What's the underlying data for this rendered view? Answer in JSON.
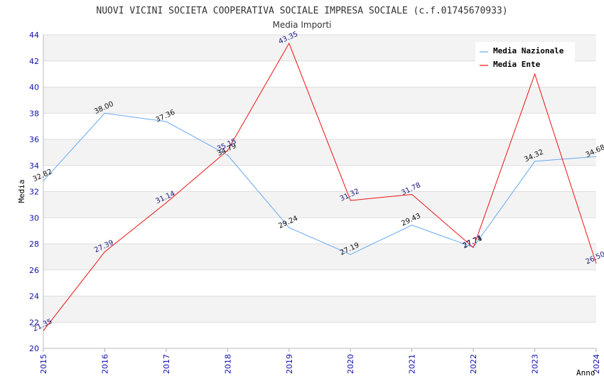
{
  "chart_data": {
    "type": "line",
    "title": "NUOVI VICINI SOCIETA COOPERATIVA SOCIALE IMPRESA SOCIALE (c.f.01745670933)",
    "subtitle": "Media Importi",
    "xlabel": "Anno",
    "ylabel": "Media",
    "x": [
      2015,
      2016,
      2017,
      2018,
      2019,
      2020,
      2021,
      2022,
      2023,
      2024
    ],
    "ylim": [
      20,
      44
    ],
    "yticks": [
      20,
      22,
      24,
      26,
      28,
      30,
      32,
      34,
      36,
      38,
      40,
      42,
      44
    ],
    "grid": true,
    "legend_position": "top-right",
    "series": [
      {
        "name": "Media Nazionale",
        "color": "#66aaee",
        "values": [
          32.82,
          38.0,
          37.36,
          34.79,
          29.24,
          27.19,
          29.43,
          27.74,
          34.32,
          34.68
        ],
        "labels": [
          "32.82",
          "38.00",
          "37.36",
          "34.79",
          "29.24",
          "27.19",
          "29.43",
          "27.74",
          "34.32",
          "34.68"
        ]
      },
      {
        "name": "Media Ente",
        "color": "#ee1111",
        "values": [
          21.35,
          27.39,
          31.14,
          35.15,
          43.35,
          31.32,
          31.78,
          27.71,
          41.0,
          26.5
        ],
        "labels": [
          "21.35",
          "27.39",
          "31.14",
          "35.15",
          "43.35",
          "31.32",
          "31.78",
          "27.71",
          "",
          "26.50"
        ]
      }
    ]
  }
}
